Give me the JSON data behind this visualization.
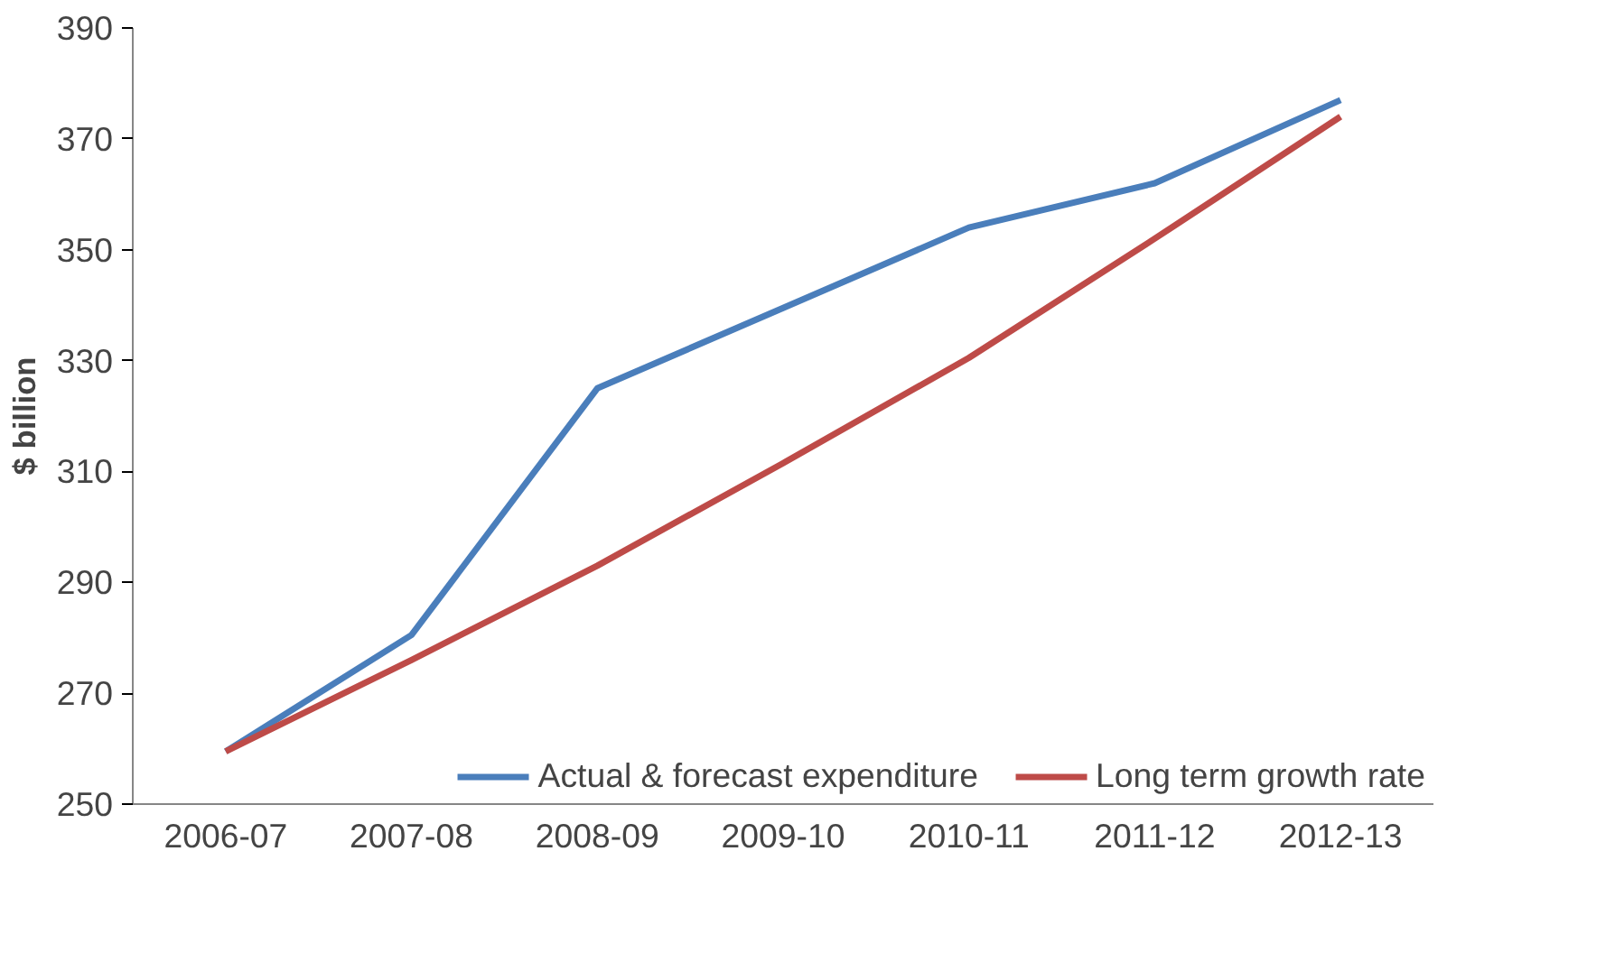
{
  "chart_data": {
    "type": "line",
    "ylabel": "$ billion",
    "categories": [
      "2006-07",
      "2007-08",
      "2008-09",
      "2009-10",
      "2010-11",
      "2011-12",
      "2012-13"
    ],
    "series": [
      {
        "name": "Actual & forecast expenditure",
        "color": "#4a7ebb",
        "values": [
          259.5,
          280.5,
          325,
          339.5,
          354,
          362,
          377
        ]
      },
      {
        "name": "Long term growth rate",
        "color": "#be4b48",
        "values": [
          259.5,
          276,
          293,
          311.5,
          330.5,
          352,
          374
        ]
      }
    ],
    "ylim": [
      250,
      390
    ],
    "yticks": [
      250,
      270,
      290,
      310,
      330,
      350,
      370,
      390
    ],
    "grid": false,
    "legend": "bottom",
    "marker": "none",
    "line_style": "solid"
  }
}
